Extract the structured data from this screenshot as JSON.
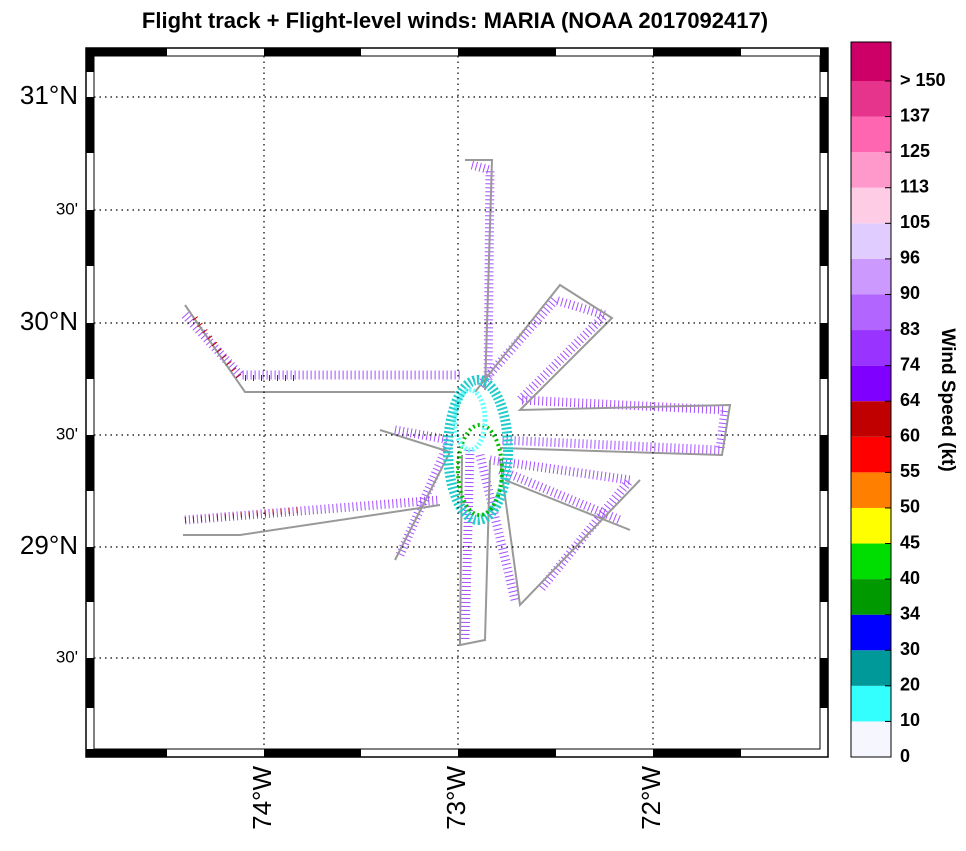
{
  "map": {
    "title": "Flight track + Flight-level winds: MARIA (NOAA 2017092417)",
    "lat_labels": [
      "31°N",
      "30'",
      "30°N",
      "30'",
      "29°N",
      "30'"
    ],
    "lon_labels": [
      "74°W",
      "73°W",
      "72°W"
    ],
    "colorbar": {
      "label": "Wind Speed (kt)",
      "ticks": [
        "0",
        "10",
        "20",
        "30",
        "34",
        "40",
        "45",
        "50",
        "55",
        "60",
        "64",
        "74",
        "83",
        "90",
        "96",
        "105",
        "113",
        "125",
        "137",
        "> 150"
      ],
      "colors": [
        "#f6f6ff",
        "#33ffff",
        "#009999",
        "#0000ff",
        "#009900",
        "#00dd00",
        "#ffff00",
        "#ff8000",
        "#ff0000",
        "#c00000",
        "#8000ff",
        "#9933ff",
        "#b266ff",
        "#cc99ff",
        "#e0ccff",
        "#ffcce6",
        "#ff99cc",
        "#ff66b2",
        "#e6338c",
        "#cc0066"
      ]
    }
  }
}
